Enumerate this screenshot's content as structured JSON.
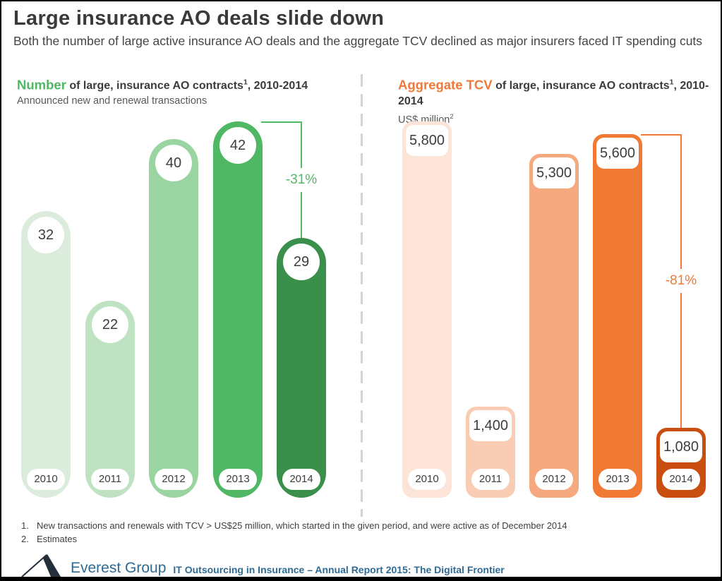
{
  "page": {
    "title": "Large insurance AO deals slide down",
    "subtitle": "Both the number of large active insurance AO deals and the aggregate TCV declined as major insurers faced IT spending cuts"
  },
  "chart_data": [
    {
      "type": "bar",
      "panel": "left",
      "title_accent": "Number",
      "title_rest": " of large, insurance AO contracts",
      "title_sup": "1",
      "title_tail": ", 2010-2014",
      "subtitle": "Announced new and renewal transactions",
      "subtitle_sup": "",
      "categories": [
        "2010",
        "2011",
        "2012",
        "2013",
        "2014"
      ],
      "values": [
        32,
        22,
        40,
        42,
        29
      ],
      "value_labels": [
        "32",
        "22",
        "40",
        "42",
        "29"
      ],
      "bar_colors": [
        "#dbecdc",
        "#bee2c2",
        "#9ad4a1",
        "#50b865",
        "#3a8f4a"
      ],
      "accent_color": "#4fb863",
      "label_style": "circle",
      "annotation": {
        "label": "-31%",
        "from_index": 3,
        "to_index": 4
      },
      "ylim": [
        0,
        42
      ],
      "grid": false,
      "legend": false,
      "bar_start": 10,
      "bar_pitch": 90.5
    },
    {
      "type": "bar",
      "panel": "right",
      "title_accent": "Aggregate TCV",
      "title_rest": " of large, insurance AO contracts",
      "title_sup": "1",
      "title_tail": ", 2010-2014",
      "subtitle": "US$ million",
      "subtitle_sup": "2",
      "categories": [
        "2010",
        "2011",
        "2012",
        "2013",
        "2014"
      ],
      "values": [
        5800,
        1400,
        5300,
        5600,
        1080
      ],
      "value_labels": [
        "5,800",
        "1,400",
        "5,300",
        "5,600",
        "1,080"
      ],
      "bar_colors": [
        "#fce5d8",
        "#f9cdb4",
        "#f6a87e",
        "#f07a33",
        "#c94e0f"
      ],
      "accent_color": "#f0793a",
      "label_style": "rect",
      "annotation": {
        "label": "-81%",
        "from_index": 3,
        "to_index": 4
      },
      "ylim": [
        0,
        5800
      ],
      "grid": false,
      "legend": false,
      "bar_start": 18,
      "bar_pitch": 90
    }
  ],
  "footnotes": [
    {
      "num": "1.",
      "text": "New transactions and renewals with TCV > US$25 million, which started in the given period, and were active as of December 2014"
    },
    {
      "num": "2.",
      "text": "Estimates"
    }
  ],
  "footer": {
    "brand": "Everest Group",
    "report": "IT Outsourcing in Insurance – Annual Report 2015: The Digital Frontier",
    "brand_color": "#2d6a94"
  }
}
